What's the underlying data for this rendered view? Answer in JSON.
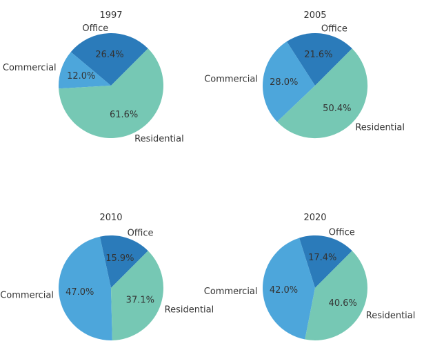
{
  "chart_data": [
    {
      "type": "pie",
      "title": "1997",
      "slices": [
        {
          "label": "Office",
          "value": 26.4,
          "pct_text": "26.4%",
          "color": "#2b7bba"
        },
        {
          "label": "Commercial",
          "value": 12.0,
          "pct_text": "12.0%",
          "color": "#4da6db"
        },
        {
          "label": "Residential",
          "value": 61.6,
          "pct_text": "61.6%",
          "color": "#76c8b4"
        }
      ]
    },
    {
      "type": "pie",
      "title": "2005",
      "slices": [
        {
          "label": "Office",
          "value": 21.6,
          "pct_text": "21.6%",
          "color": "#2b7bba"
        },
        {
          "label": "Commercial",
          "value": 28.0,
          "pct_text": "28.0%",
          "color": "#4da6db"
        },
        {
          "label": "Residential",
          "value": 50.4,
          "pct_text": "50.4%",
          "color": "#76c8b4"
        }
      ]
    },
    {
      "type": "pie",
      "title": "2010",
      "slices": [
        {
          "label": "Office",
          "value": 15.9,
          "pct_text": "15.9%",
          "color": "#2b7bba"
        },
        {
          "label": "Commercial",
          "value": 47.0,
          "pct_text": "47.0%",
          "color": "#4da6db"
        },
        {
          "label": "Residential",
          "value": 37.1,
          "pct_text": "37.1%",
          "color": "#76c8b4"
        }
      ]
    },
    {
      "type": "pie",
      "title": "2020",
      "slices": [
        {
          "label": "Office",
          "value": 17.4,
          "pct_text": "17.4%",
          "color": "#2b7bba"
        },
        {
          "label": "Commercial",
          "value": 42.0,
          "pct_text": "42.0%",
          "color": "#4da6db"
        },
        {
          "label": "Residential",
          "value": 40.6,
          "pct_text": "40.6%",
          "color": "#76c8b4"
        }
      ]
    }
  ]
}
